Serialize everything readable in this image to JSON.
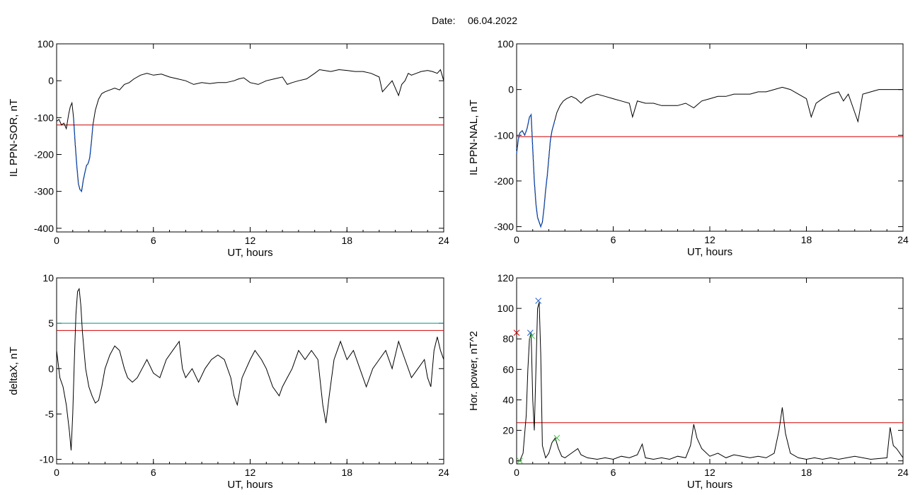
{
  "page": {
    "title_label": "Date:",
    "title_date": "06.04.2022"
  },
  "colors": {
    "series": "#000000",
    "threshold_red": "#d00000",
    "threshold_teal": "#009080",
    "highlight_blue": "#2060d0",
    "marker_blue": "#2060d0",
    "marker_green": "#40c040",
    "marker_red": "#d00000"
  },
  "chart_data": [
    {
      "id": "il_sor",
      "type": "line",
      "xlabel": "UT, hours",
      "ylabel": "IL PPN-SOR, nT",
      "xlim": [
        0,
        24
      ],
      "ylim": [
        -410,
        100
      ],
      "xticks": [
        0,
        6,
        12,
        18,
        24
      ],
      "yticks": [
        100,
        0,
        -100,
        -200,
        -300,
        -400
      ],
      "threshold": -120,
      "highlight_range": [
        1.0,
        2.3
      ],
      "x": [
        0,
        0.15,
        0.3,
        0.45,
        0.6,
        0.75,
        0.85,
        0.95,
        1.05,
        1.15,
        1.25,
        1.35,
        1.45,
        1.55,
        1.65,
        1.75,
        1.85,
        1.95,
        2.05,
        2.15,
        2.25,
        2.4,
        2.6,
        2.8,
        3.0,
        3.3,
        3.6,
        3.9,
        4.2,
        4.5,
        4.8,
        5.2,
        5.6,
        6.0,
        6.5,
        7.0,
        7.5,
        8.0,
        8.5,
        9.0,
        9.5,
        10.0,
        10.5,
        11.0,
        11.3,
        11.6,
        12.0,
        12.5,
        13.0,
        13.5,
        14.0,
        14.3,
        14.6,
        15.0,
        15.5,
        16.0,
        16.3,
        16.6,
        17.0,
        17.5,
        18.0,
        18.5,
        19.0,
        19.5,
        20.0,
        20.2,
        20.4,
        20.6,
        20.8,
        21.0,
        21.2,
        21.4,
        21.6,
        21.8,
        22.0,
        22.3,
        22.6,
        23.0,
        23.3,
        23.6,
        23.8,
        24.0
      ],
      "y": [
        -110,
        -105,
        -120,
        -115,
        -130,
        -90,
        -70,
        -60,
        -100,
        -170,
        -230,
        -280,
        -295,
        -300,
        -270,
        -250,
        -230,
        -225,
        -210,
        -170,
        -120,
        -80,
        -50,
        -35,
        -30,
        -25,
        -20,
        -25,
        -10,
        -5,
        5,
        15,
        20,
        15,
        18,
        10,
        5,
        0,
        -10,
        -5,
        -8,
        -5,
        -5,
        0,
        5,
        8,
        -5,
        -10,
        0,
        5,
        10,
        -10,
        -5,
        0,
        5,
        20,
        30,
        28,
        25,
        30,
        28,
        25,
        25,
        20,
        10,
        -30,
        -20,
        -10,
        0,
        -20,
        -40,
        -10,
        0,
        20,
        15,
        20,
        25,
        28,
        25,
        20,
        30,
        0
      ]
    },
    {
      "id": "il_nal",
      "type": "line",
      "xlabel": "UT, hours",
      "ylabel": "IL PPN-NAL, nT",
      "xlim": [
        0,
        24
      ],
      "ylim": [
        -310,
        100
      ],
      "xticks": [
        0,
        6,
        12,
        18,
        24
      ],
      "yticks": [
        100,
        0,
        -100,
        -200,
        -300
      ],
      "threshold": -103,
      "highlight_range": [
        0.0,
        2.4
      ],
      "x": [
        0,
        0.1,
        0.2,
        0.35,
        0.5,
        0.65,
        0.8,
        0.9,
        1.0,
        1.1,
        1.2,
        1.3,
        1.4,
        1.5,
        1.6,
        1.7,
        1.8,
        1.9,
        2.0,
        2.1,
        2.2,
        2.35,
        2.5,
        2.7,
        2.9,
        3.1,
        3.4,
        3.7,
        4.0,
        4.3,
        4.6,
        5.0,
        5.5,
        6.0,
        6.5,
        7.0,
        7.2,
        7.5,
        8.0,
        8.5,
        9.0,
        9.5,
        10.0,
        10.5,
        11.0,
        11.5,
        12.0,
        12.5,
        13.0,
        13.5,
        14.0,
        14.5,
        15.0,
        15.5,
        16.0,
        16.5,
        17.0,
        17.5,
        18.0,
        18.3,
        18.6,
        19.0,
        19.5,
        20.0,
        20.3,
        20.6,
        20.9,
        21.2,
        21.5,
        22.0,
        22.5,
        23.0,
        23.5,
        24.0
      ],
      "y": [
        -140,
        -110,
        -95,
        -90,
        -100,
        -85,
        -60,
        -55,
        -130,
        -200,
        -250,
        -280,
        -290,
        -300,
        -290,
        -260,
        -220,
        -190,
        -150,
        -110,
        -90,
        -70,
        -50,
        -35,
        -25,
        -20,
        -15,
        -20,
        -30,
        -20,
        -15,
        -10,
        -15,
        -20,
        -25,
        -30,
        -60,
        -25,
        -30,
        -30,
        -35,
        -35,
        -35,
        -30,
        -40,
        -25,
        -20,
        -15,
        -15,
        -10,
        -10,
        -10,
        -5,
        -5,
        0,
        5,
        0,
        -10,
        -20,
        -60,
        -30,
        -20,
        -10,
        -5,
        -25,
        -10,
        -40,
        -70,
        -10,
        -5,
        0,
        0,
        0,
        0
      ]
    },
    {
      "id": "deltax",
      "type": "line",
      "xlabel": "UT, hours",
      "ylabel": "deltaX, nT",
      "xlim": [
        0,
        24
      ],
      "ylim": [
        -10.5,
        10
      ],
      "xticks": [
        0,
        6,
        12,
        18,
        24
      ],
      "yticks": [
        10,
        5,
        0,
        -5,
        -10
      ],
      "thresholds": [
        {
          "value": 5,
          "color": "teal"
        },
        {
          "value": 4.2,
          "color": "red"
        }
      ],
      "x": [
        0,
        0.2,
        0.4,
        0.6,
        0.8,
        0.9,
        1.0,
        1.1,
        1.2,
        1.3,
        1.4,
        1.5,
        1.6,
        1.8,
        2.0,
        2.2,
        2.4,
        2.6,
        2.8,
        3.0,
        3.3,
        3.6,
        3.9,
        4.2,
        4.4,
        4.7,
        5.0,
        5.3,
        5.6,
        6.0,
        6.4,
        6.8,
        7.2,
        7.6,
        7.8,
        8.0,
        8.4,
        8.8,
        9.2,
        9.6,
        10.0,
        10.4,
        10.8,
        11.0,
        11.2,
        11.5,
        12.0,
        12.3,
        12.7,
        13.0,
        13.4,
        13.8,
        14.0,
        14.3,
        14.6,
        15.0,
        15.4,
        15.8,
        16.2,
        16.5,
        16.7,
        16.9,
        17.2,
        17.6,
        18.0,
        18.4,
        18.8,
        19.2,
        19.6,
        20.0,
        20.4,
        20.8,
        21.2,
        21.6,
        22.0,
        22.4,
        22.8,
        23.0,
        23.2,
        23.4,
        23.6,
        23.8,
        24.0
      ],
      "y": [
        2,
        -1,
        -2,
        -4,
        -7,
        -9,
        -5,
        1,
        6,
        8.5,
        8.8,
        7,
        4,
        0,
        -2,
        -3,
        -3.8,
        -3.5,
        -2,
        0,
        1.5,
        2.5,
        2,
        0,
        -1,
        -1.5,
        -1,
        0,
        1,
        -0.5,
        -1,
        1,
        2,
        3,
        0,
        -1,
        0,
        -1.5,
        0,
        1,
        1.5,
        1,
        -1,
        -3,
        -4,
        -1,
        1,
        2,
        1,
        0,
        -2,
        -3,
        -2,
        -1,
        0,
        2,
        1,
        2,
        1,
        -4,
        -6,
        -3,
        1,
        3,
        1,
        2,
        0,
        -2,
        0,
        1,
        2,
        0,
        3,
        1,
        -1,
        0,
        1,
        -1,
        -2,
        2,
        3.5,
        2,
        1
      ]
    },
    {
      "id": "hor_power",
      "type": "line",
      "xlabel": "UT, hours",
      "ylabel": "Hor. power, nT^2",
      "xlim": [
        0,
        24
      ],
      "ylim": [
        -2,
        120
      ],
      "xticks": [
        0,
        6,
        12,
        18,
        24
      ],
      "yticks": [
        120,
        100,
        80,
        60,
        40,
        20,
        0
      ],
      "threshold": 25,
      "markers": [
        {
          "x": 0.2,
          "y": 0,
          "color": "green"
        },
        {
          "x": 0.85,
          "y": 84,
          "color": "blue"
        },
        {
          "x": 0.95,
          "y": 82,
          "color": "green"
        },
        {
          "x": 1.35,
          "y": 105,
          "color": "blue"
        },
        {
          "x": 2.5,
          "y": 15,
          "color": "green"
        },
        {
          "x": 0.0,
          "y": 84,
          "color": "red"
        }
      ],
      "x": [
        0,
        0.2,
        0.4,
        0.6,
        0.7,
        0.8,
        0.9,
        1.0,
        1.1,
        1.2,
        1.3,
        1.4,
        1.5,
        1.6,
        1.8,
        2.0,
        2.2,
        2.4,
        2.6,
        2.8,
        3.0,
        3.4,
        3.8,
        4.0,
        4.4,
        5.0,
        5.5,
        6.0,
        6.5,
        7.0,
        7.5,
        7.8,
        8.0,
        8.5,
        9.0,
        9.5,
        10.0,
        10.5,
        10.8,
        11.0,
        11.2,
        11.5,
        12.0,
        12.5,
        13.0,
        13.5,
        14.0,
        14.5,
        15.0,
        15.5,
        16.0,
        16.3,
        16.5,
        16.7,
        17.0,
        17.5,
        18.0,
        18.5,
        19.0,
        19.5,
        20.0,
        21.0,
        22.0,
        23.0,
        23.2,
        23.4,
        23.6,
        23.8,
        24.0
      ],
      "y": [
        0,
        0,
        5,
        30,
        60,
        80,
        84,
        40,
        20,
        60,
        100,
        104,
        70,
        10,
        2,
        5,
        12,
        15,
        8,
        3,
        2,
        5,
        8,
        4,
        2,
        1,
        2,
        1,
        3,
        2,
        4,
        11,
        2,
        1,
        2,
        1,
        3,
        2,
        10,
        24,
        15,
        8,
        3,
        5,
        2,
        4,
        3,
        2,
        3,
        2,
        5,
        20,
        35,
        18,
        5,
        2,
        1,
        2,
        1,
        2,
        1,
        3,
        1,
        2,
        22,
        10,
        8,
        5,
        2
      ]
    }
  ]
}
